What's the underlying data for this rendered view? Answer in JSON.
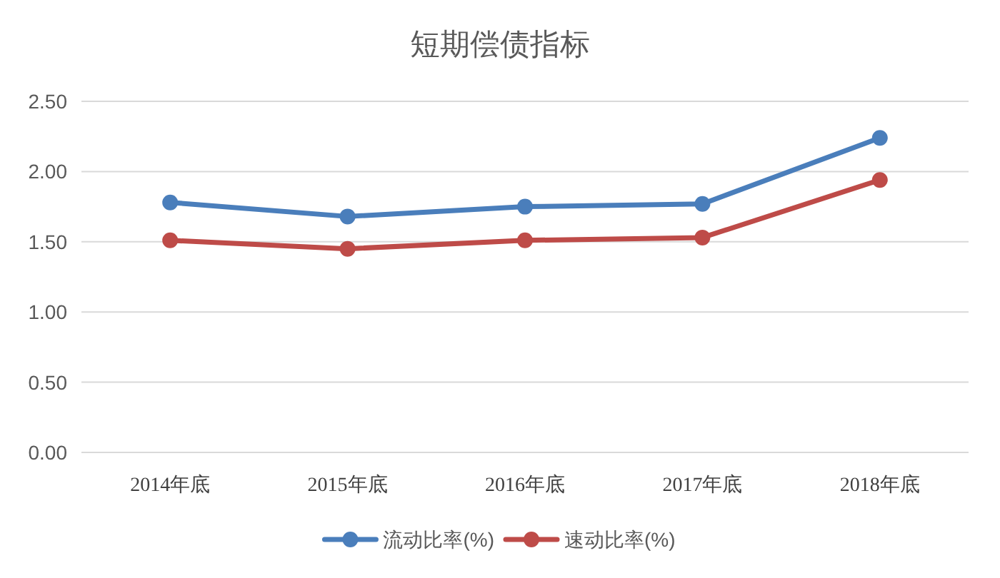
{
  "chart_data": {
    "type": "line",
    "title": "短期偿债指标",
    "categories": [
      "2014年底",
      "2015年底",
      "2016年底",
      "2017年底",
      "2018年底"
    ],
    "series": [
      {
        "name": "流动比率(%)",
        "color": "#4a7ebb",
        "values": [
          1.78,
          1.68,
          1.75,
          1.77,
          2.24
        ]
      },
      {
        "name": "速动比率(%)",
        "color": "#be4b48",
        "values": [
          1.51,
          1.45,
          1.51,
          1.53,
          1.94
        ]
      }
    ],
    "ylim": [
      0,
      2.5
    ],
    "yticks": [
      {
        "value": 0,
        "label": "0.00"
      },
      {
        "value": 0.5,
        "label": "0.50"
      },
      {
        "value": 1,
        "label": "1.00"
      },
      {
        "value": 1.5,
        "label": "1.50"
      },
      {
        "value": 2,
        "label": "2.00"
      },
      {
        "value": 2.5,
        "label": "2.50"
      }
    ],
    "grid": "y",
    "legend": "bottom",
    "marker": "circle",
    "line_style": "solid"
  }
}
